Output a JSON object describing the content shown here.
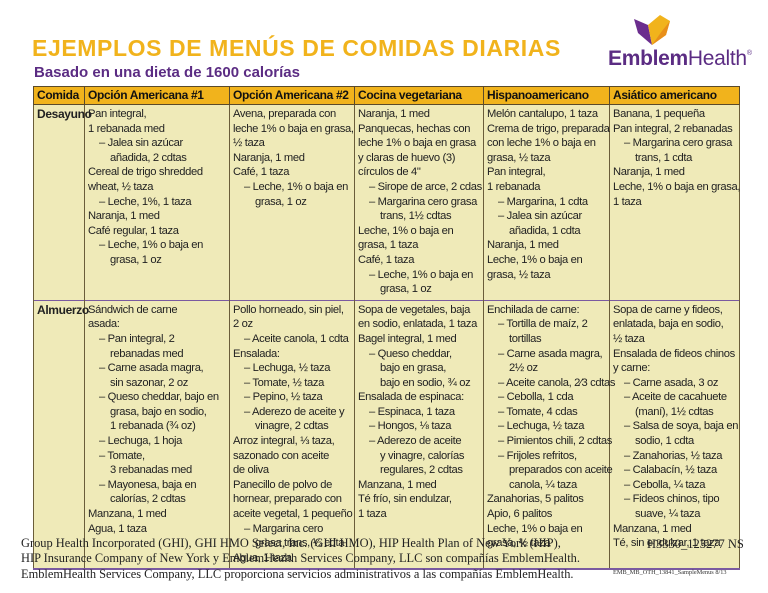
{
  "header": {
    "title": "EJEMPLOS DE MENÚS DE COMIDAS DIARIAS",
    "subtitle": "Basado en una dieta de 1600 calorías",
    "logo": {
      "bold": "Emblem",
      "light": "Health",
      "reg": "®",
      "icon": "emblem-shield-icon"
    },
    "colors": {
      "title": "#F1B31C",
      "subtitle": "#5B2C83",
      "header_bg": "#F1B31C",
      "cell_bg": "#EFEAB8",
      "row_divider": "#7A5AA0"
    }
  },
  "table": {
    "columns": [
      "Comida",
      "Opción Americana #1",
      "Opción Americana #2",
      "Cocina vegetariana",
      "Hispanoamericano",
      "Asiático americano"
    ],
    "rows": [
      {
        "meal": "Desayuno",
        "cells": [
          [
            {
              "t": "Pan integral,",
              "i": 0
            },
            {
              "t": "1 rebanada med",
              "i": 0
            },
            {
              "t": "– Jalea sin azúcar",
              "i": 1
            },
            {
              "t": "añadida, 2 cdtas",
              "i": 2
            },
            {
              "t": "Cereal de trigo shredded",
              "i": 0
            },
            {
              "t": "wheat, ½ taza",
              "i": 0
            },
            {
              "t": "– Leche, 1%,  1 taza",
              "i": 1
            },
            {
              "t": "Naranja, 1 med",
              "i": 0
            },
            {
              "t": "Café regular, 1 taza",
              "i": 0
            },
            {
              "t": "– Leche, 1% o baja en",
              "i": 1
            },
            {
              "t": "grasa, 1 oz",
              "i": 2
            }
          ],
          [
            {
              "t": "Avena, preparada con",
              "i": 0
            },
            {
              "t": "leche 1% o baja en grasa,",
              "i": 0
            },
            {
              "t": "½ taza",
              "i": 0
            },
            {
              "t": "Naranja, 1 med",
              "i": 0
            },
            {
              "t": "Café, 1 taza",
              "i": 0
            },
            {
              "t": "– Leche, 1% o baja en",
              "i": 1
            },
            {
              "t": "grasa, 1 oz",
              "i": 2
            }
          ],
          [
            {
              "t": "Naranja, 1 med",
              "i": 0
            },
            {
              "t": "Panquecas, hechas con",
              "i": 0
            },
            {
              "t": "leche 1% o baja en grasa",
              "i": 0
            },
            {
              "t": "y claras de huevo (3)",
              "i": 0
            },
            {
              "t": "círculos de 4\"",
              "i": 0
            },
            {
              "t": "– Sirope de arce, 2 cdas",
              "i": 1
            },
            {
              "t": "– Margarina cero grasa",
              "i": 1
            },
            {
              "t": "trans, 1½ cdtas",
              "i": 2
            },
            {
              "t": "Leche, 1% o baja en",
              "i": 0
            },
            {
              "t": "grasa, 1 taza",
              "i": 0
            },
            {
              "t": "Café, 1 taza",
              "i": 0
            },
            {
              "t": "– Leche, 1% o baja en",
              "i": 1
            },
            {
              "t": "grasa, 1 oz",
              "i": 2
            }
          ],
          [
            {
              "t": "Melón cantalupo, 1 taza",
              "i": 0
            },
            {
              "t": "Crema de trigo, preparada",
              "i": 0
            },
            {
              "t": "con leche 1% o baja en",
              "i": 0
            },
            {
              "t": "grasa, ½ taza",
              "i": 0
            },
            {
              "t": "Pan integral,",
              "i": 0
            },
            {
              "t": "1 rebanada",
              "i": 0
            },
            {
              "t": "– Margarina, 1 cdta",
              "i": 1
            },
            {
              "t": "– Jalea sin azúcar",
              "i": 1
            },
            {
              "t": "añadida, 1 cdta",
              "i": 2
            },
            {
              "t": "Naranja, 1 med",
              "i": 0
            },
            {
              "t": "Leche, 1% o baja en",
              "i": 0
            },
            {
              "t": "grasa, ½  taza",
              "i": 0
            }
          ],
          [
            {
              "t": "Banana, 1 pequeña",
              "i": 0
            },
            {
              "t": "Pan integral,  2 rebanadas",
              "i": 0
            },
            {
              "t": "– Margarina cero grasa",
              "i": 1
            },
            {
              "t": "trans, 1 cdta",
              "i": 2
            },
            {
              "t": "Naranja, 1 med",
              "i": 0
            },
            {
              "t": "Leche, 1% o baja en grasa,",
              "i": 0
            },
            {
              "t": "1 taza",
              "i": 0
            }
          ]
        ]
      },
      {
        "meal": "Almuerzo",
        "cells": [
          [
            {
              "t": "Sándwich de carne",
              "i": 0
            },
            {
              "t": "asada:",
              "i": 0
            },
            {
              "t": "– Pan integral, 2",
              "i": 1
            },
            {
              "t": "rebanadas med",
              "i": 2
            },
            {
              "t": "– Carne asada magra,",
              "i": 1
            },
            {
              "t": "sin sazonar, 2 oz",
              "i": 2
            },
            {
              "t": "– Queso cheddar, bajo en",
              "i": 1
            },
            {
              "t": "grasa, bajo en sodio,",
              "i": 2
            },
            {
              "t": "1 rebanada (¾ oz)",
              "i": 2
            },
            {
              "t": "– Lechuga, 1 hoja",
              "i": 1
            },
            {
              "t": "– Tomate,",
              "i": 1
            },
            {
              "t": "3 rebanadas med",
              "i": 2
            },
            {
              "t": "– Mayonesa, baja en",
              "i": 1
            },
            {
              "t": "calorías, 2 cdtas",
              "i": 2
            },
            {
              "t": "Manzana, 1 med",
              "i": 0
            },
            {
              "t": "Agua, 1 taza",
              "i": 0
            }
          ],
          [
            {
              "t": "Pollo horneado, sin piel,",
              "i": 0
            },
            {
              "t": "2 oz",
              "i": 0
            },
            {
              "t": "– Aceite canola, 1 cdta",
              "i": 1
            },
            {
              "t": "Ensalada:",
              "i": 0
            },
            {
              "t": "– Lechuga, ½ taza",
              "i": 1
            },
            {
              "t": "– Tomate, ½ taza",
              "i": 1
            },
            {
              "t": "– Pepino, ½ taza",
              "i": 1
            },
            {
              "t": "– Aderezo de aceite y",
              "i": 1
            },
            {
              "t": "vinagre, 2 cdtas",
              "i": 2
            },
            {
              "t": "Arroz integral, ⅓ taza,",
              "i": 0
            },
            {
              "t": "sazonado con aceite",
              "i": 0
            },
            {
              "t": "de oliva",
              "i": 0
            },
            {
              "t": "Panecillo de polvo de",
              "i": 0
            },
            {
              "t": "hornear, preparado con",
              "i": 0
            },
            {
              "t": "aceite vegetal, 1 pequeño",
              "i": 0
            },
            {
              "t": "– Margarina cero",
              "i": 1
            },
            {
              "t": "grasa trans, ½ cdta",
              "i": 2
            },
            {
              "t": "Agua, 1 taza",
              "i": 0
            }
          ],
          [
            {
              "t": "Sopa de vegetales, baja",
              "i": 0
            },
            {
              "t": "en sodio, enlatada, 1 taza",
              "i": 0
            },
            {
              "t": "Bagel integral, 1 med",
              "i": 0
            },
            {
              "t": "– Queso cheddar,",
              "i": 1
            },
            {
              "t": "bajo en grasa,",
              "i": 2
            },
            {
              "t": "bajo en sodio, ¾ oz",
              "i": 2
            },
            {
              "t": "Ensalada de espinaca:",
              "i": 0
            },
            {
              "t": "– Espinaca, 1 taza",
              "i": 1
            },
            {
              "t": "– Hongos, ⅛  taza",
              "i": 1
            },
            {
              "t": "– Aderezo de aceite",
              "i": 1
            },
            {
              "t": "y vinagre, calorías",
              "i": 2
            },
            {
              "t": "regulares, 2 cdtas",
              "i": 2
            },
            {
              "t": "Manzana, 1 med",
              "i": 0
            },
            {
              "t": "Té frío, sin endulzar,",
              "i": 0
            },
            {
              "t": "1 taza",
              "i": 0
            }
          ],
          [
            {
              "t": "Enchilada de carne:",
              "i": 0
            },
            {
              "t": "– Tortilla de maíz, 2",
              "i": 1
            },
            {
              "t": "tortillas",
              "i": 2
            },
            {
              "t": "– Carne asada magra,",
              "i": 1
            },
            {
              "t": "2½ oz",
              "i": 2
            },
            {
              "t": "– Aceite canola, 2⁄3 cdtas",
              "i": 1
            },
            {
              "t": "– Cebolla, 1 cda",
              "i": 1
            },
            {
              "t": "– Tomate, 4 cdas",
              "i": 1
            },
            {
              "t": "– Lechuga, ½ taza",
              "i": 1
            },
            {
              "t": "– Pimientos chili, 2 cdtas",
              "i": 1
            },
            {
              "t": "– Frijoles refritos,",
              "i": 1
            },
            {
              "t": "preparados con aceite",
              "i": 2
            },
            {
              "t": "canola, ¼ taza",
              "i": 2
            },
            {
              "t": "Zanahorias, 5 palitos",
              "i": 0
            },
            {
              "t": "Apio, 6 palitos",
              "i": 0
            },
            {
              "t": "Leche, 1% o baja en",
              "i": 0
            },
            {
              "t": "grasa, ½ taza",
              "i": 0
            }
          ],
          [
            {
              "t": "Sopa de carne y fideos,",
              "i": 0
            },
            {
              "t": "enlatada, baja en sodio,",
              "i": 0
            },
            {
              "t": "½ taza",
              "i": 0
            },
            {
              "t": "Ensalada de fideos chinos",
              "i": 0
            },
            {
              "t": "y carne:",
              "i": 0
            },
            {
              "t": "– Carne asada, 3 oz",
              "i": 1
            },
            {
              "t": "– Aceite de cacahuete",
              "i": 1
            },
            {
              "t": "(maní), 1½ cdtas",
              "i": 2
            },
            {
              "t": "– Salsa de soya, baja en",
              "i": 1
            },
            {
              "t": "sodio, 1 cdta",
              "i": 2
            },
            {
              "t": "– Zanahorias, ½ taza",
              "i": 1
            },
            {
              "t": "– Calabacín, ½ taza",
              "i": 1
            },
            {
              "t": "– Cebolla, ¼ taza",
              "i": 1
            },
            {
              "t": "– Fideos chinos, tipo",
              "i": 1
            },
            {
              "t": "suave, ¼ taza",
              "i": 2
            },
            {
              "t": "Manzana, 1 med",
              "i": 0
            },
            {
              "t": "Té, sin endulzar, 1 taza",
              "i": 0
            }
          ]
        ]
      }
    ]
  },
  "footer": {
    "lines": [
      "Group Health Incorporated (GHI), GHI HMO Select, Inc. (GHI HMO), HIP Health Plan of New York (HIP),",
      "HIP Insurance Company of New York y EmblemHealth Services Company, LLC son compañías EmblemHealth.",
      "EmblemHealth Services Company, LLC proporciona servicios administrativos a las compañías EmblemHealth."
    ],
    "code": "H3330_123277 NS",
    "doc_id": "EMB_MB_OTH_13841_SampleMenus 8/13"
  }
}
